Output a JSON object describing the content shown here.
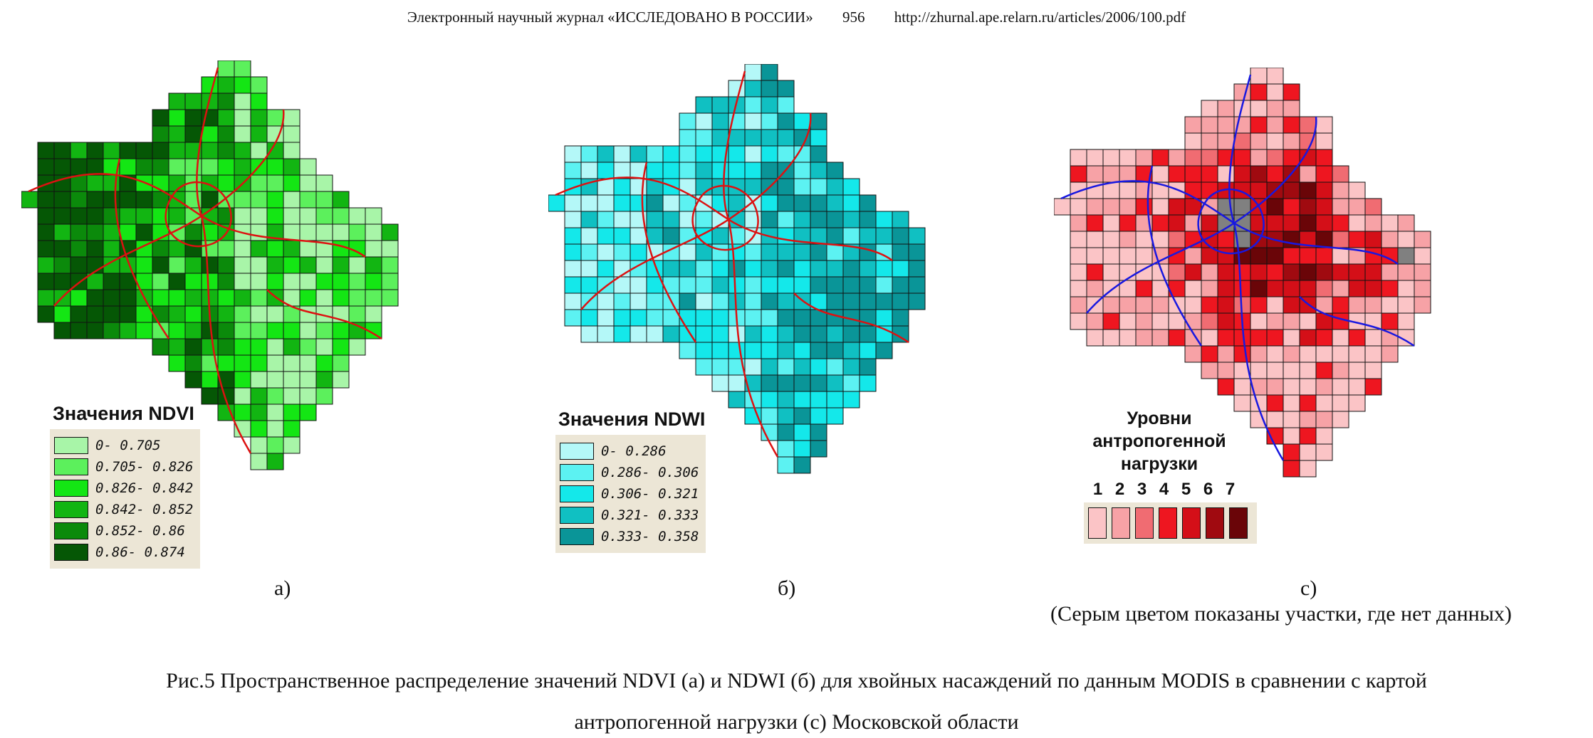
{
  "header": {
    "journal": "Электронный научный журнал «ИССЛЕДОВАНО В РОССИИ»",
    "page": "956",
    "url": "http://zhurnal.ape.relarn.ru/articles/2006/100.pdf"
  },
  "panels": {
    "a": {
      "label": "а)",
      "legend_title": "Значения NDVI",
      "classes": [
        {
          "label": "0- 0.705",
          "color": "#a8f5a8"
        },
        {
          "label": "0.705- 0.826",
          "color": "#5cf05c"
        },
        {
          "label": "0.826- 0.842",
          "color": "#14e614"
        },
        {
          "label": "0.842- 0.852",
          "color": "#12b512"
        },
        {
          "label": "0.852- 0.86",
          "color": "#0b8a0b"
        },
        {
          "label": "0.86- 0.874",
          "color": "#055705"
        }
      ],
      "boundary_color": "#dd1111"
    },
    "b": {
      "label": "б)",
      "legend_title": "Значения NDWI",
      "classes": [
        {
          "label": "0- 0.286",
          "color": "#b4f8f8"
        },
        {
          "label": "0.286- 0.306",
          "color": "#5cf2f2"
        },
        {
          "label": "0.306- 0.321",
          "color": "#14e8ea"
        },
        {
          "label": "0.321- 0.333",
          "color": "#10c0c2"
        },
        {
          "label": "0.333- 0.358",
          "color": "#0a9598"
        }
      ],
      "boundary_color": "#dd1111"
    },
    "c": {
      "label": "с)",
      "note": "(Серым цветом показаны участки, где нет данных)",
      "legend_title_lines": [
        "Уровни",
        "антропогенной",
        "нагрузки"
      ],
      "levels": [
        {
          "label": "1",
          "color": "#fbc4c6"
        },
        {
          "label": "2",
          "color": "#f7a2a6"
        },
        {
          "label": "3",
          "color": "#f06c72"
        },
        {
          "label": "4",
          "color": "#ee1620"
        },
        {
          "label": "5",
          "color": "#d40f18"
        },
        {
          "label": "6",
          "color": "#a00a10"
        },
        {
          "label": "7",
          "color": "#6a0508"
        }
      ],
      "no_data_color": "#808080",
      "boundary_color": "#1818e0"
    }
  },
  "caption": {
    "line1": "Рис.5 Пространственное распределение значений NDVI (а) и NDWI (б) для хвойных насаждений по данным MODIS в сравнении с картой",
    "line2": "антропогенной нагрузки (с) Московской области"
  }
}
